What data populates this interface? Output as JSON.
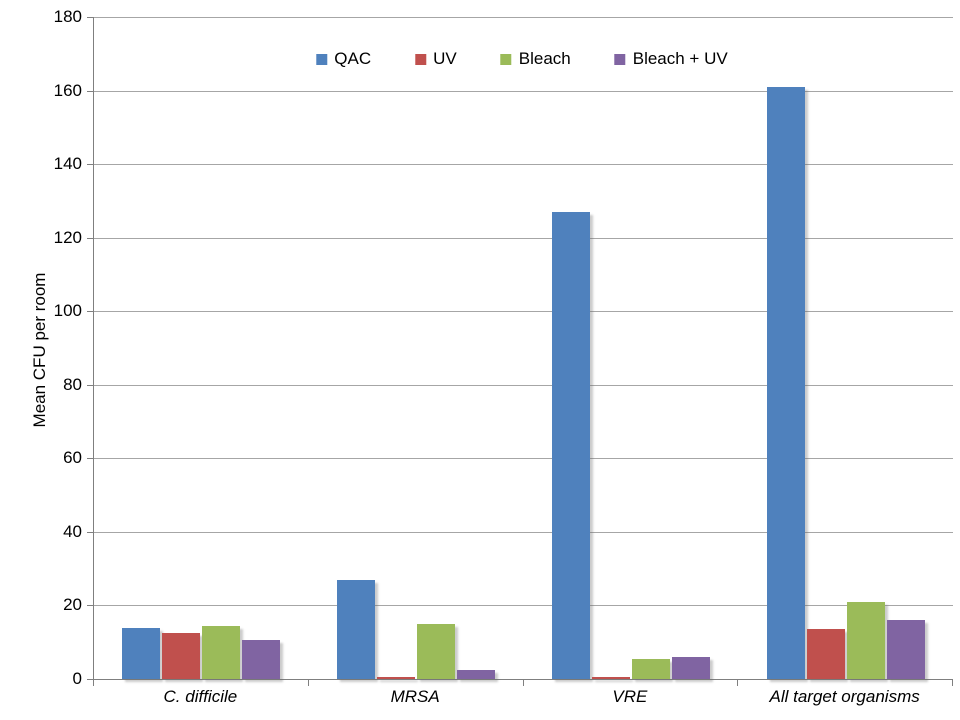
{
  "chart_data": {
    "type": "bar",
    "title": "",
    "xlabel": "",
    "ylabel": "Mean CFU per room",
    "ylim": [
      0,
      180
    ],
    "ytick_step": 20,
    "grid": true,
    "legend_position": "top-center",
    "categories": [
      "C. difficile",
      "MRSA",
      "VRE",
      "All target organisms"
    ],
    "series": [
      {
        "name": "QAC",
        "color": "#4F81BD",
        "values": [
          14,
          27,
          127,
          161
        ]
      },
      {
        "name": "UV",
        "color": "#C0504D",
        "values": [
          12.5,
          0.5,
          0.5,
          13.5
        ]
      },
      {
        "name": "Bleach",
        "color": "#9BBB59",
        "values": [
          14.5,
          15,
          5.5,
          21
        ]
      },
      {
        "name": "Bleach + UV",
        "color": "#8064A2",
        "values": [
          10.5,
          2.5,
          6,
          16
        ]
      }
    ],
    "colors": {
      "gridline": "#A6A6A6",
      "axis": "#7F7F7F",
      "text": "#000000"
    }
  }
}
